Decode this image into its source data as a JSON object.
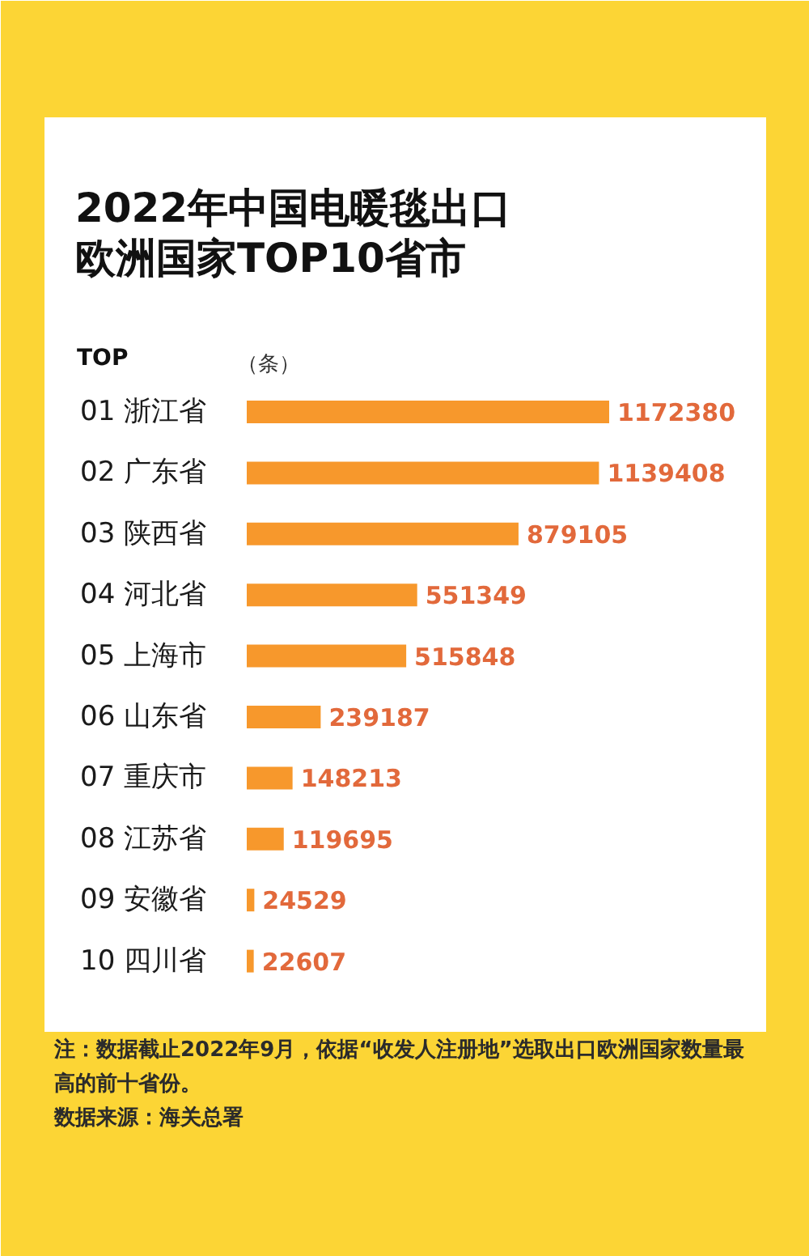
{
  "chart_data": {
    "type": "bar",
    "orientation": "horizontal",
    "title": "2022年中国电暖毯出口欧洲国家TOP10省市",
    "ylabel": "TOP",
    "xlabel": "（条）",
    "categories": [
      "01 浙江省",
      "02 广东省",
      "03 陕西省",
      "04 河北省",
      "05 上海市",
      "06 山东省",
      "07 重庆市",
      "08 江苏省",
      "09 安徽省",
      "10 四川省"
    ],
    "values": [
      1172380,
      1139408,
      879105,
      551349,
      515848,
      239187,
      148213,
      119695,
      24529,
      22607
    ],
    "color": "#f7982c",
    "data_labels": true,
    "annotations": [
      "注：数据截止2022年9月，依据“收发人注册地”选取出口欧洲国家数量最高的前十省份。",
      "数据来源：海关总署"
    ]
  }
}
